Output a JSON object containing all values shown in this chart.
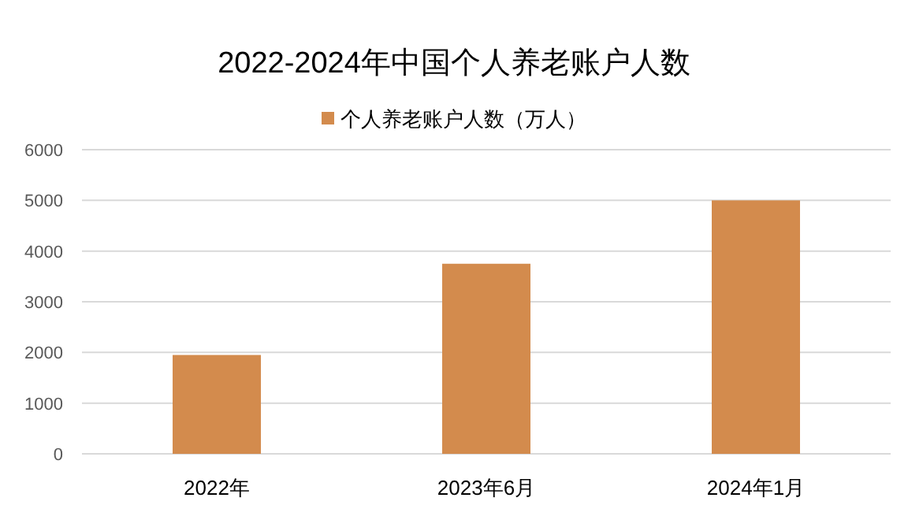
{
  "chart_data": {
    "type": "bar",
    "title": "2022-2024年中国个人养老账户人数",
    "categories": [
      "2022年",
      "2023年6月",
      "2024年1月"
    ],
    "series": [
      {
        "name": "个人养老账户人数（万人）",
        "color": "#d38b4d",
        "values": [
          1950,
          3750,
          5000
        ]
      }
    ],
    "ylim": [
      0,
      6000
    ],
    "yticks": [
      0,
      1000,
      2000,
      3000,
      4000,
      5000,
      6000
    ],
    "grid": "y",
    "legend": "top"
  }
}
